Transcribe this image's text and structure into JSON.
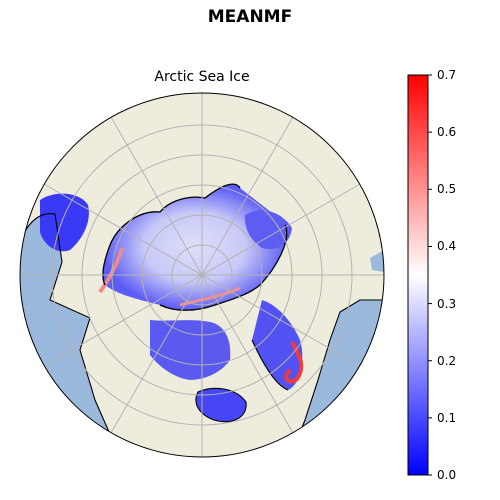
{
  "figure_title": "MEANMF",
  "map_title": "Arctic Sea Ice",
  "colorbar": {
    "ticks": [
      "0.0",
      "0.1",
      "0.2",
      "0.3",
      "0.4",
      "0.5",
      "0.6",
      "0.7"
    ],
    "range": [
      0.0,
      0.7
    ],
    "colormap": "bwr",
    "colors": [
      "#0000ff",
      "#ffffff",
      "#ff0000"
    ]
  },
  "map": {
    "projection": "north-polar-stereographic",
    "ocean_color": "#9bb8dd",
    "land_color": "#eeecdd",
    "gridlines": true
  }
}
